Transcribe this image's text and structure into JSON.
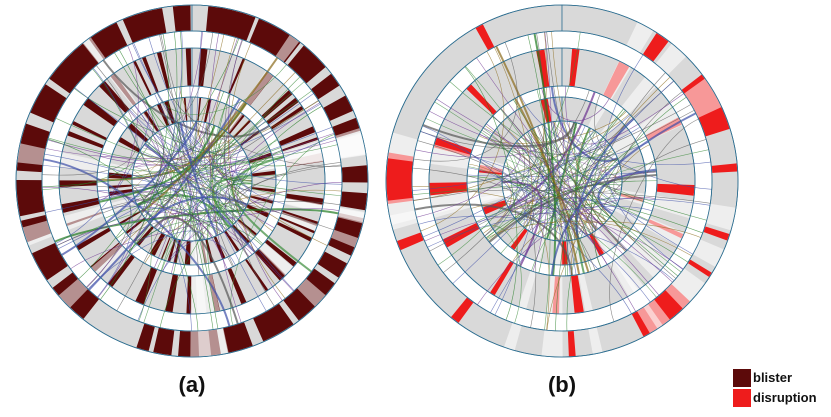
{
  "panels": [
    {
      "label": "(a)",
      "mark_color": "#5c0a0a"
    },
    {
      "label": "(b)",
      "mark_color": "#ee1c1c"
    }
  ],
  "legend": [
    {
      "label": "blister",
      "color": "#5c0a0a"
    },
    {
      "label": "disruption",
      "color": "#ee1c1c"
    }
  ],
  "colors": {
    "ring_fill": "#d9d9d9",
    "ring_outline": "#2f6f91",
    "edge_colors": [
      "#1f7a1f",
      "#3a8c3a",
      "#6a2f8f",
      "#3d4fa8",
      "#8a6a1a",
      "#555555"
    ]
  }
}
